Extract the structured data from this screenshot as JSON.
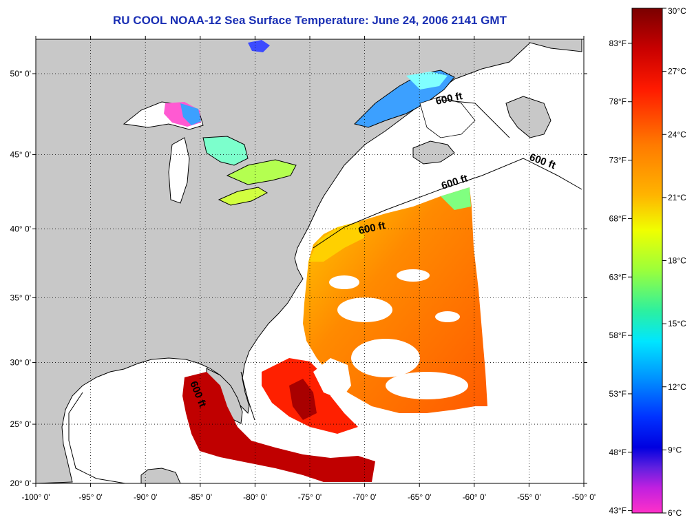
{
  "title": "RU COOL  NOAA-12  Sea Surface Temperature:  June 24, 2006 2141 GMT",
  "lon_ticks": [
    "-100° 0'",
    "-95° 0'",
    "-90° 0'",
    "-85° 0'",
    "-80° 0'",
    "-75° 0'",
    "-70° 0'",
    "-65° 0'",
    "-60° 0'",
    "-55° 0'",
    "-50° 0'"
  ],
  "lat_ticks": [
    "50° 0'",
    "45° 0'",
    "40° 0'",
    "35° 0'",
    "30° 0'",
    "25° 0'",
    "20° 0'"
  ],
  "contour_labels": [
    "600 ft",
    "600 ft",
    "600 ft",
    "600 ft",
    "600 ft"
  ],
  "colorbar": {
    "celsius": [
      "30°C",
      "27°C",
      "24°C",
      "21°C",
      "18°C",
      "15°C",
      "12°C",
      "9°C",
      "6°C"
    ],
    "fahrenheit": [
      "83°F",
      "78°F",
      "73°F",
      "68°F",
      "63°F",
      "58°F",
      "53°F",
      "48°F",
      "43°F"
    ]
  },
  "colors": {
    "title": "#1a2fb4",
    "land": "#c8c8c8",
    "ocean_nodata": "#ffffff"
  }
}
